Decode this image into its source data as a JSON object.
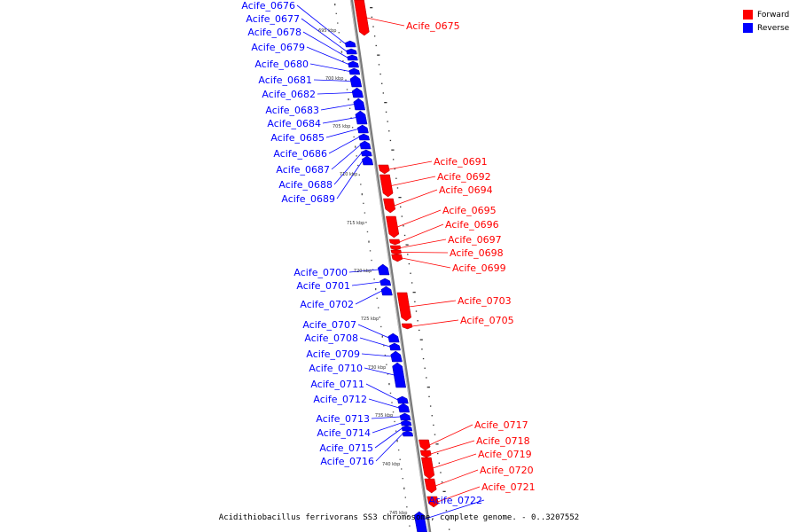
{
  "legend": [
    {
      "label": "Forward",
      "color": "#ff0000"
    },
    {
      "label": "Reverse",
      "color": "#0000ff"
    }
  ],
  "caption": "Acidithiobacillus ferrivorans SS3 chromosome, complete genome. - 0..3207552",
  "colors": {
    "forward": "#ff0000",
    "reverse": "#0000ff",
    "axis": "#808080"
  },
  "scale_labels": [
    "695 kbp",
    "700 kbp",
    "705 kbp",
    "710 kbp",
    "715 kbp",
    "720 kbp",
    "725 kbp",
    "730 kbp",
    "735 kbp",
    "740 kbp",
    "745 kbp"
  ],
  "genes": [
    {
      "name": "Acife_0675",
      "strand": "forward"
    },
    {
      "name": "Acife_0676",
      "strand": "reverse"
    },
    {
      "name": "Acife_0677",
      "strand": "reverse"
    },
    {
      "name": "Acife_0678",
      "strand": "reverse"
    },
    {
      "name": "Acife_0679",
      "strand": "reverse"
    },
    {
      "name": "Acife_0680",
      "strand": "reverse"
    },
    {
      "name": "Acife_0681",
      "strand": "reverse"
    },
    {
      "name": "Acife_0682",
      "strand": "reverse"
    },
    {
      "name": "Acife_0683",
      "strand": "reverse"
    },
    {
      "name": "Acife_0684",
      "strand": "reverse"
    },
    {
      "name": "Acife_0685",
      "strand": "reverse"
    },
    {
      "name": "Acife_0686",
      "strand": "reverse"
    },
    {
      "name": "Acife_0687",
      "strand": "reverse"
    },
    {
      "name": "Acife_0688",
      "strand": "reverse"
    },
    {
      "name": "Acife_0689",
      "strand": "reverse"
    },
    {
      "name": "Acife_0691",
      "strand": "forward"
    },
    {
      "name": "Acife_0692",
      "strand": "forward"
    },
    {
      "name": "Acife_0694",
      "strand": "forward"
    },
    {
      "name": "Acife_0695",
      "strand": "forward"
    },
    {
      "name": "Acife_0696",
      "strand": "forward"
    },
    {
      "name": "Acife_0697",
      "strand": "forward"
    },
    {
      "name": "Acife_0698",
      "strand": "forward"
    },
    {
      "name": "Acife_0699",
      "strand": "forward"
    },
    {
      "name": "Acife_0700",
      "strand": "reverse"
    },
    {
      "name": "Acife_0701",
      "strand": "reverse"
    },
    {
      "name": "Acife_0702",
      "strand": "reverse"
    },
    {
      "name": "Acife_0703",
      "strand": "forward"
    },
    {
      "name": "Acife_0705",
      "strand": "forward"
    },
    {
      "name": "Acife_0707",
      "strand": "reverse"
    },
    {
      "name": "Acife_0708",
      "strand": "reverse"
    },
    {
      "name": "Acife_0709",
      "strand": "reverse"
    },
    {
      "name": "Acife_0710",
      "strand": "reverse"
    },
    {
      "name": "Acife_0711",
      "strand": "reverse"
    },
    {
      "name": "Acife_0712",
      "strand": "reverse"
    },
    {
      "name": "Acife_0713",
      "strand": "reverse"
    },
    {
      "name": "Acife_0714",
      "strand": "reverse"
    },
    {
      "name": "Acife_0715",
      "strand": "reverse"
    },
    {
      "name": "Acife_0716",
      "strand": "reverse"
    },
    {
      "name": "Acife_0717",
      "strand": "forward"
    },
    {
      "name": "Acife_0718",
      "strand": "forward"
    },
    {
      "name": "Acife_0719",
      "strand": "forward"
    },
    {
      "name": "Acife_0720",
      "strand": "forward"
    },
    {
      "name": "Acife_0721",
      "strand": "forward"
    },
    {
      "name": "Acife_0722",
      "strand": "reverse"
    }
  ]
}
